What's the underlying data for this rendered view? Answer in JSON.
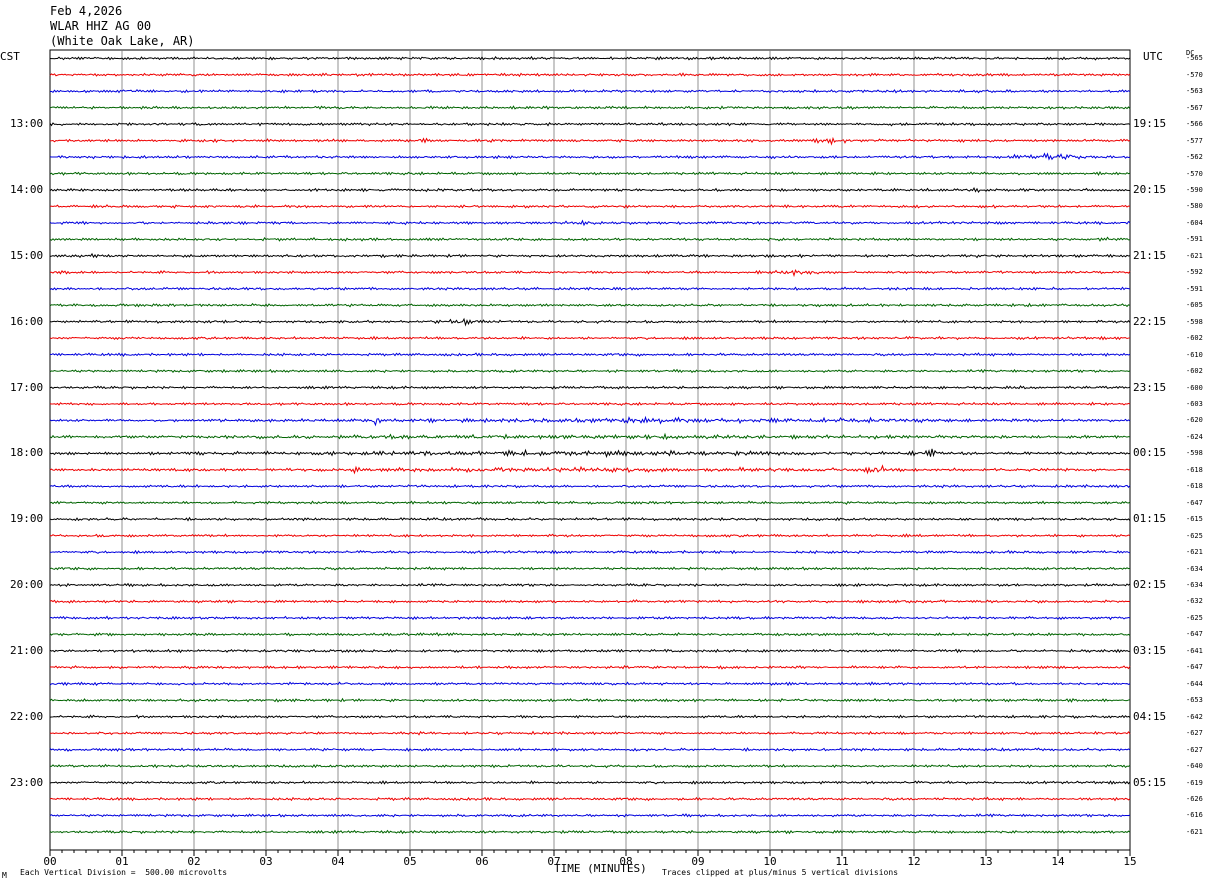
{
  "header": {
    "date": "Feb 4,2026",
    "station": "WLAR HHZ AG 00",
    "location": "(White Oak Lake, AR)"
  },
  "axis_labels": {
    "left_tz": "CST",
    "right_tz": "UTC",
    "dc": "DC",
    "x_title": "TIME (MINUTES)"
  },
  "footer": {
    "scale_note": "Each Vertical Division =  500.00 microvolts",
    "clip_note": "Traces clipped at plus/minus 5 vertical divisions",
    "mark": "M"
  },
  "chart_data": {
    "type": "line",
    "title": "",
    "xlabel": "TIME (MINUTES)",
    "xlim": [
      0,
      15
    ],
    "x_ticks": [
      "00",
      "01",
      "02",
      "03",
      "04",
      "05",
      "06",
      "07",
      "08",
      "09",
      "10",
      "11",
      "12",
      "13",
      "14",
      "15"
    ],
    "trace_colors": [
      "#000000",
      "#ee0000",
      "#0000dd",
      "#006400"
    ],
    "rows_per_hour": 4,
    "left_hour_labels": [
      "13:00",
      "14:00",
      "15:00",
      "16:00",
      "17:00",
      "18:00",
      "19:00",
      "20:00",
      "21:00",
      "22:00",
      "23:00"
    ],
    "right_hour_labels": [
      "19:15",
      "20:15",
      "21:15",
      "22:15",
      "23:15",
      "00:15",
      "01:15",
      "02:15",
      "03:15",
      "04:15",
      "05:15"
    ],
    "dc_offsets": [
      -565,
      -570,
      -563,
      -567,
      -566,
      -577,
      -562,
      -570,
      -590,
      -580,
      -604,
      -591,
      -621,
      -592,
      -591,
      -605,
      -598,
      -602,
      -610,
      -602,
      -600,
      -603,
      -620,
      -624,
      -598,
      -618,
      -618,
      -647,
      -615,
      -625,
      -621,
      -634,
      -634,
      -632,
      -625,
      -647,
      -641,
      -647,
      -644,
      -653,
      -642,
      -627,
      -627,
      -640,
      -619,
      -626,
      -616,
      -621
    ],
    "events": [
      {
        "row": 0,
        "start": 7.9,
        "end": 9.0,
        "amp": 1.6
      },
      {
        "row": 5,
        "start": 4.6,
        "end": 5.6,
        "amp": 2.0
      },
      {
        "row": 5,
        "start": 10.4,
        "end": 11.2,
        "amp": 3.0
      },
      {
        "row": 6,
        "start": 13.3,
        "end": 14.5,
        "amp": 4.0
      },
      {
        "row": 8,
        "start": 12.5,
        "end": 13.4,
        "amp": 2.0
      },
      {
        "row": 9,
        "start": 12.8,
        "end": 13.7,
        "amp": 1.6
      },
      {
        "row": 10,
        "start": 6.8,
        "end": 8.0,
        "amp": 2.0
      },
      {
        "row": 11,
        "start": 14.4,
        "end": 15.0,
        "amp": 2.4
      },
      {
        "row": 12,
        "start": 0.0,
        "end": 1.0,
        "amp": 2.0
      },
      {
        "row": 12,
        "start": 12.4,
        "end": 13.4,
        "amp": 1.8
      },
      {
        "row": 13,
        "start": 9.8,
        "end": 11.0,
        "amp": 3.0
      },
      {
        "row": 16,
        "start": 5.2,
        "end": 6.2,
        "amp": 2.8
      },
      {
        "row": 20,
        "start": 12.4,
        "end": 14.0,
        "amp": 2.0
      },
      {
        "row": 22,
        "start": 2.0,
        "end": 15.0,
        "amp": 2.6
      },
      {
        "row": 22,
        "start": 4.45,
        "end": 4.6,
        "amp": 8.0
      },
      {
        "row": 23,
        "start": 0.0,
        "end": 15.0,
        "amp": 2.4
      },
      {
        "row": 24,
        "start": 0.0,
        "end": 15.0,
        "amp": 2.6
      },
      {
        "row": 24,
        "start": 12.15,
        "end": 12.3,
        "amp": 9.0
      },
      {
        "row": 25,
        "start": 0.0,
        "end": 15.0,
        "amp": 2.4
      },
      {
        "row": 25,
        "start": 11.2,
        "end": 11.8,
        "amp": 4.5
      },
      {
        "row": 25,
        "start": 4.2,
        "end": 4.4,
        "amp": 5.0
      }
    ]
  }
}
